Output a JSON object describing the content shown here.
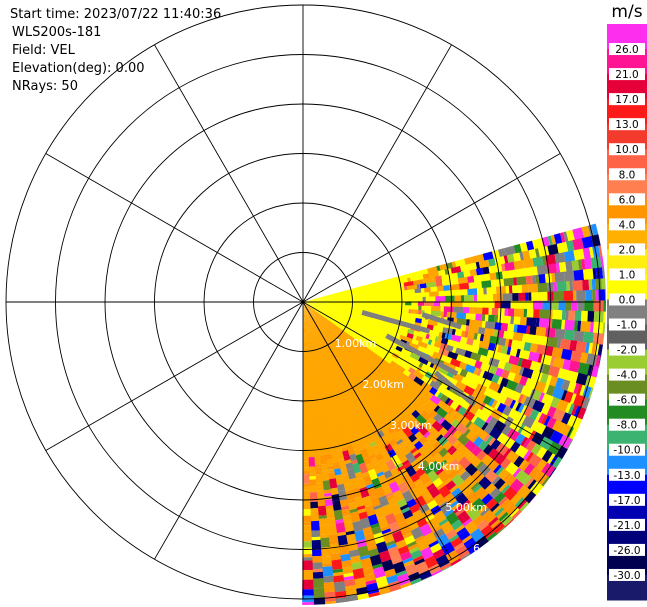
{
  "header": {
    "start_time": "Start time: 2023/07/22 11:40:36",
    "instrument": "WLS200s-181",
    "field": "Field: VEL",
    "elevation": "Elevation(deg): 0.00",
    "nrays": "NRays: 50"
  },
  "chart_data": {
    "type": "heatmap",
    "projection": "polar-ppi",
    "field": "VEL",
    "units": "m/s",
    "elevation_deg": 0.0,
    "n_rays": 50,
    "azimuth_range_deg": [
      75,
      180
    ],
    "range_rings_km": [
      1,
      2,
      3,
      4,
      5,
      6
    ],
    "range_ring_labels": [
      "1.00km",
      "2.00km",
      "3.00km",
      "4.00km",
      "5.00km",
      "6.00km"
    ],
    "spokes_deg": [
      0,
      30,
      60,
      90,
      120,
      150,
      180,
      210,
      240,
      270,
      300,
      330
    ],
    "max_range_km": 6.0,
    "colorbar": {
      "title": "m/s",
      "tick_labels": [
        "26.0",
        "21.0",
        "17.0",
        "13.0",
        "10.0",
        "8.0",
        "6.0",
        "4.0",
        "2.0",
        "1.0",
        "0.0",
        "-1.0",
        "-2.0",
        "-4.0",
        "-6.0",
        "-8.0",
        "-10.0",
        "-13.0",
        "-17.0",
        "-21.0",
        "-26.0",
        "-30.0"
      ],
      "colors": [
        "#fe2eef",
        "#ff1493",
        "#e6003a",
        "#ff1a1a",
        "#f23b2c",
        "#ff6347",
        "#ff7f50",
        "#ff9500",
        "#ffb000",
        "#ffef10",
        "#ffff00",
        "#808080",
        "#606060",
        "#9acd32",
        "#6b8e23",
        "#228b22",
        "#3cb371",
        "#1e90ff",
        "#0000ff",
        "#0000b0",
        "#00007a",
        "#000050",
        "#1a1a6a"
      ]
    },
    "near_field_values": {
      "yellow_sector_az_deg": [
        75,
        125
      ],
      "yellow_value": 3.0,
      "orange_sector_az_deg": [
        125,
        180
      ],
      "orange_value": 5.0,
      "gray_streak_value": 0.0,
      "clean_range_km": 1.2
    }
  }
}
